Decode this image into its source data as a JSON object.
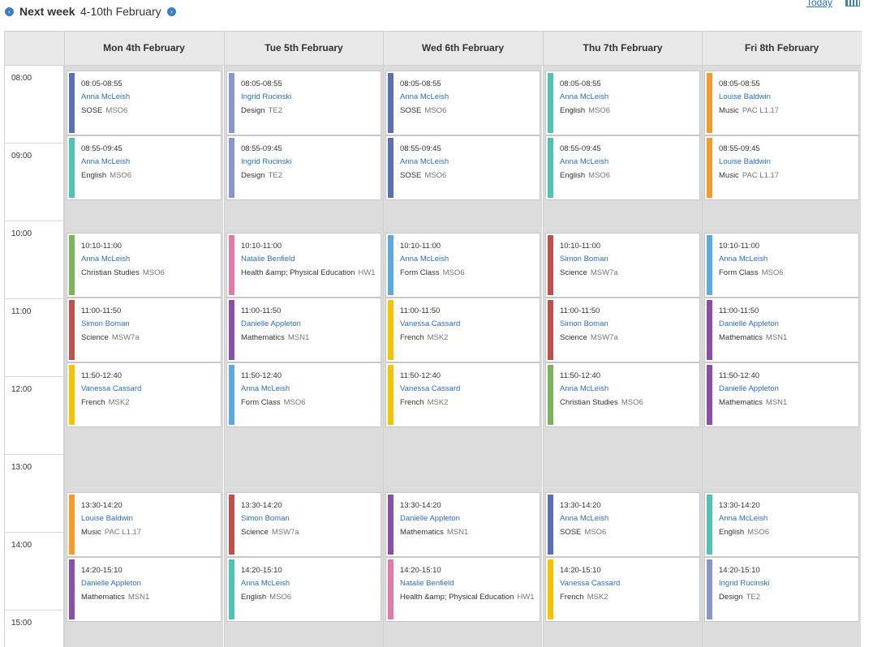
{
  "header": {
    "week_label": "Next week",
    "week_range": "4-10th February",
    "today_label": "Today",
    "prev_icon": "chevron-left-icon",
    "next_icon": "chevron-right-icon",
    "calendar_icon": "calendar-grid-icon"
  },
  "hours": [
    "08:00",
    "09:00",
    "10:00",
    "11:00",
    "12:00",
    "13:00",
    "14:00",
    "15:00"
  ],
  "days": [
    {
      "label": "Mon 4th February",
      "events": [
        {
          "time": "08:05-08:55",
          "teacher": "Anna McLeish",
          "subject": "SOSE",
          "room": "MSO6",
          "color": "#5b6fb5"
        },
        {
          "time": "08:55-09:45",
          "teacher": "Anna McLeish",
          "subject": "English",
          "room": "MSO6",
          "color": "#4fc4b3"
        },
        {
          "time": "10:10-11:00",
          "teacher": "Anna McLeish",
          "subject": "Christian Studies",
          "room": "MSO6",
          "color": "#7ab55c"
        },
        {
          "time": "11:00-11:50",
          "teacher": "Simon Boman",
          "subject": "Science",
          "room": "MSW7a",
          "color": "#c0504d"
        },
        {
          "time": "11:50-12:40",
          "teacher": "Vanessa Cassard",
          "subject": "French",
          "room": "MSK2",
          "color": "#f5c400"
        },
        {
          "time": "13:30-14:20",
          "teacher": "Louise Baldwin",
          "subject": "Music",
          "room": "PAC L1.17",
          "color": "#f39c2b"
        },
        {
          "time": "14:20-15:10",
          "teacher": "Danielle Appleton",
          "subject": "Mathematics",
          "room": "MSN1",
          "color": "#8a4fa8"
        }
      ]
    },
    {
      "label": "Tue 5th February",
      "events": [
        {
          "time": "08:05-08:55",
          "teacher": "Ingrid Rucinski",
          "subject": "Design",
          "room": "TE2",
          "color": "#8a96c9"
        },
        {
          "time": "08:55-09:45",
          "teacher": "Ingrid Rucinski",
          "subject": "Design",
          "room": "TE2",
          "color": "#8a96c9"
        },
        {
          "time": "10:10-11:00",
          "teacher": "Natalie Benfield",
          "subject": "Health &amp; Physical Education",
          "room": "HW1",
          "color": "#e07aa6"
        },
        {
          "time": "11:00-11:50",
          "teacher": "Danielle Appleton",
          "subject": "Mathematics",
          "room": "MSN1",
          "color": "#8a4fa8"
        },
        {
          "time": "11:50-12:40",
          "teacher": "Anna McLeish",
          "subject": "Form Class",
          "room": "MSO6",
          "color": "#5aa9e0"
        },
        {
          "time": "13:30-14:20",
          "teacher": "Simon Boman",
          "subject": "Science",
          "room": "MSW7a",
          "color": "#c0504d"
        },
        {
          "time": "14:20-15:10",
          "teacher": "Anna McLeish",
          "subject": "English",
          "room": "MSO6",
          "color": "#4fc4b3"
        }
      ]
    },
    {
      "label": "Wed 6th February",
      "events": [
        {
          "time": "08:05-08:55",
          "teacher": "Anna McLeish",
          "subject": "SOSE",
          "room": "MSO6",
          "color": "#5b6fb5"
        },
        {
          "time": "08:55-09:45",
          "teacher": "Anna McLeish",
          "subject": "SOSE",
          "room": "MSO6",
          "color": "#5b6fb5"
        },
        {
          "time": "10:10-11:00",
          "teacher": "Anna McLeish",
          "subject": "Form Class",
          "room": "MSO6",
          "color": "#5aa9e0"
        },
        {
          "time": "11:00-11:50",
          "teacher": "Vanessa Cassard",
          "subject": "French",
          "room": "MSK2",
          "color": "#f5c400"
        },
        {
          "time": "11:50-12:40",
          "teacher": "Vanessa Cassard",
          "subject": "French",
          "room": "MSK2",
          "color": "#f5c400"
        },
        {
          "time": "13:30-14:20",
          "teacher": "Danielle Appleton",
          "subject": "Mathematics",
          "room": "MSN1",
          "color": "#8a4fa8"
        },
        {
          "time": "14:20-15:10",
          "teacher": "Natalie Benfield",
          "subject": "Health &amp; Physical Education",
          "room": "HW1",
          "color": "#e07aa6"
        }
      ]
    },
    {
      "label": "Thu 7th February",
      "events": [
        {
          "time": "08:05-08:55",
          "teacher": "Anna McLeish",
          "subject": "English",
          "room": "MSO6",
          "color": "#4fc4b3"
        },
        {
          "time": "08:55-09:45",
          "teacher": "Anna McLeish",
          "subject": "English",
          "room": "MSO6",
          "color": "#4fc4b3"
        },
        {
          "time": "10:10-11:00",
          "teacher": "Simon Boman",
          "subject": "Science",
          "room": "MSW7a",
          "color": "#c0504d"
        },
        {
          "time": "11:00-11:50",
          "teacher": "Simon Boman",
          "subject": "Science",
          "room": "MSW7a",
          "color": "#c0504d"
        },
        {
          "time": "11:50-12:40",
          "teacher": "Anna McLeish",
          "subject": "Christian Studies",
          "room": "MSO6",
          "color": "#7ab55c"
        },
        {
          "time": "13:30-14:20",
          "teacher": "Anna McLeish",
          "subject": "SOSE",
          "room": "MSO6",
          "color": "#5b6fb5"
        },
        {
          "time": "14:20-15:10",
          "teacher": "Vanessa Cassard",
          "subject": "French",
          "room": "MSK2",
          "color": "#f5c400"
        }
      ]
    },
    {
      "label": "Fri 8th February",
      "events": [
        {
          "time": "08:05-08:55",
          "teacher": "Louise Baldwin",
          "subject": "Music",
          "room": "PAC L1.17",
          "color": "#f39c2b"
        },
        {
          "time": "08:55-09:45",
          "teacher": "Louise Baldwin",
          "subject": "Music",
          "room": "PAC L1.17",
          "color": "#f39c2b"
        },
        {
          "time": "10:10-11:00",
          "teacher": "Anna McLeish",
          "subject": "Form Class",
          "room": "MSO6",
          "color": "#5aa9e0"
        },
        {
          "time": "11:00-11:50",
          "teacher": "Danielle Appleton",
          "subject": "Mathematics",
          "room": "MSN1",
          "color": "#8a4fa8"
        },
        {
          "time": "11:50-12:40",
          "teacher": "Danielle Appleton",
          "subject": "Mathematics",
          "room": "MSN1",
          "color": "#8a4fa8"
        },
        {
          "time": "13:30-14:20",
          "teacher": "Anna McLeish",
          "subject": "English",
          "room": "MSO6",
          "color": "#4fc4b3"
        },
        {
          "time": "14:20-15:10",
          "teacher": "Ingrid Rucinski",
          "subject": "Design",
          "room": "TE2",
          "color": "#8a96c9"
        }
      ]
    }
  ]
}
